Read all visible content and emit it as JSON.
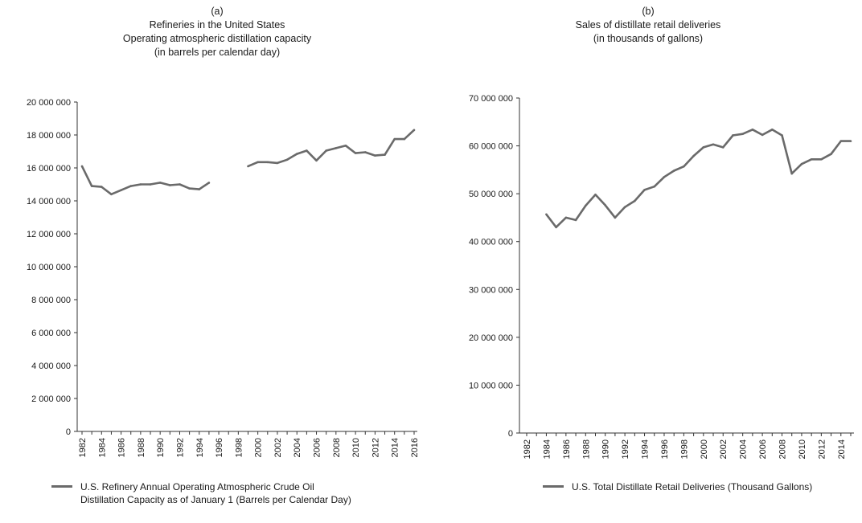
{
  "chart_data": [
    {
      "type": "line",
      "panel_label": "(a)",
      "title_lines": [
        "Refineries in the United States",
        "Operating atmospheric distillation capacity",
        "(in barrels per calendar day)"
      ],
      "ylim": [
        0,
        20000000
      ],
      "yticks": [
        0,
        2000000,
        4000000,
        6000000,
        8000000,
        10000000,
        12000000,
        14000000,
        16000000,
        18000000,
        20000000
      ],
      "ytick_labels": [
        "0",
        "2 000 000",
        "4 000 000",
        "6 000 000",
        "8 000 000",
        "10 000 000",
        "12 000 000",
        "14 000 000",
        "16 000 000",
        "18 000 000",
        "20 000 000"
      ],
      "xlim": [
        1982,
        2016
      ],
      "xtick_labels": [
        "1982",
        "1984",
        "1986",
        "1988",
        "1990",
        "1992",
        "1994",
        "1996",
        "1998",
        "2000",
        "2002",
        "2004",
        "2006",
        "2008",
        "2010",
        "2012",
        "2014",
        "2016"
      ],
      "series": [
        {
          "name": "U.S. Refinery Annual Operating Atmospheric Crude Oil Distillation Capacity as of January 1 (Barrels per Calendar Day)",
          "legend_lines": [
            "U.S. Refinery Annual Operating Atmospheric Crude Oil",
            "Distillation Capacity as of January 1 (Barrels per Calendar Day)"
          ],
          "color": "#6a6a6a",
          "x": [
            1982,
            1983,
            1984,
            1985,
            1986,
            1987,
            1988,
            1989,
            1990,
            1991,
            1992,
            1993,
            1994,
            1995,
            1996,
            1997,
            1998,
            1999,
            2000,
            2001,
            2002,
            2003,
            2004,
            2005,
            2006,
            2007,
            2008,
            2009,
            2010,
            2011,
            2012,
            2013,
            2014,
            2015,
            2016
          ],
          "y": [
            16100000,
            14900000,
            14850000,
            14400000,
            14650000,
            14900000,
            15000000,
            15000000,
            15100000,
            14950000,
            15000000,
            14750000,
            14700000,
            15100000,
            null,
            null,
            null,
            16100000,
            16350000,
            16350000,
            16300000,
            16500000,
            16850000,
            17050000,
            16450000,
            17050000,
            17200000,
            17350000,
            16900000,
            16950000,
            16750000,
            16800000,
            17750000,
            17750000,
            18300000
          ]
        }
      ]
    },
    {
      "type": "line",
      "panel_label": "(b)",
      "title_lines": [
        "Sales of distillate retail deliveries",
        "(in thousands of gallons)"
      ],
      "ylim": [
        0,
        70000000
      ],
      "yticks": [
        0,
        10000000,
        20000000,
        30000000,
        40000000,
        50000000,
        60000000,
        70000000
      ],
      "ytick_labels": [
        "0",
        "10 000 000",
        "20 000 000",
        "30 000 000",
        "40 000 000",
        "50 000 000",
        "60 000 000",
        "70 000 000"
      ],
      "xlim": [
        1982,
        2015
      ],
      "xtick_labels": [
        "1982",
        "1984",
        "1986",
        "1988",
        "1990",
        "1992",
        "1994",
        "1996",
        "1998",
        "2000",
        "2002",
        "2004",
        "2006",
        "2008",
        "2010",
        "2012",
        "2014"
      ],
      "series": [
        {
          "name": "U.S. Total Distillate Retail Deliveries (Thousand Gallons)",
          "legend_lines": [
            "U.S. Total Distillate Retail Deliveries (Thousand Gallons)"
          ],
          "color": "#6a6a6a",
          "x": [
            1984,
            1985,
            1986,
            1987,
            1988,
            1989,
            1990,
            1991,
            1992,
            1993,
            1994,
            1995,
            1996,
            1997,
            1998,
            1999,
            2000,
            2001,
            2002,
            2003,
            2004,
            2005,
            2006,
            2007,
            2008,
            2009,
            2010,
            2011,
            2012,
            2013,
            2014,
            2015
          ],
          "y": [
            45700000,
            43000000,
            45000000,
            44500000,
            47500000,
            49800000,
            47600000,
            45000000,
            47200000,
            48500000,
            50800000,
            51500000,
            53500000,
            54800000,
            55700000,
            57900000,
            59700000,
            60300000,
            59700000,
            62200000,
            62500000,
            63400000,
            62300000,
            63400000,
            62200000,
            54200000,
            56200000,
            57200000,
            57200000,
            58300000,
            61000000,
            61000000
          ]
        }
      ]
    }
  ]
}
